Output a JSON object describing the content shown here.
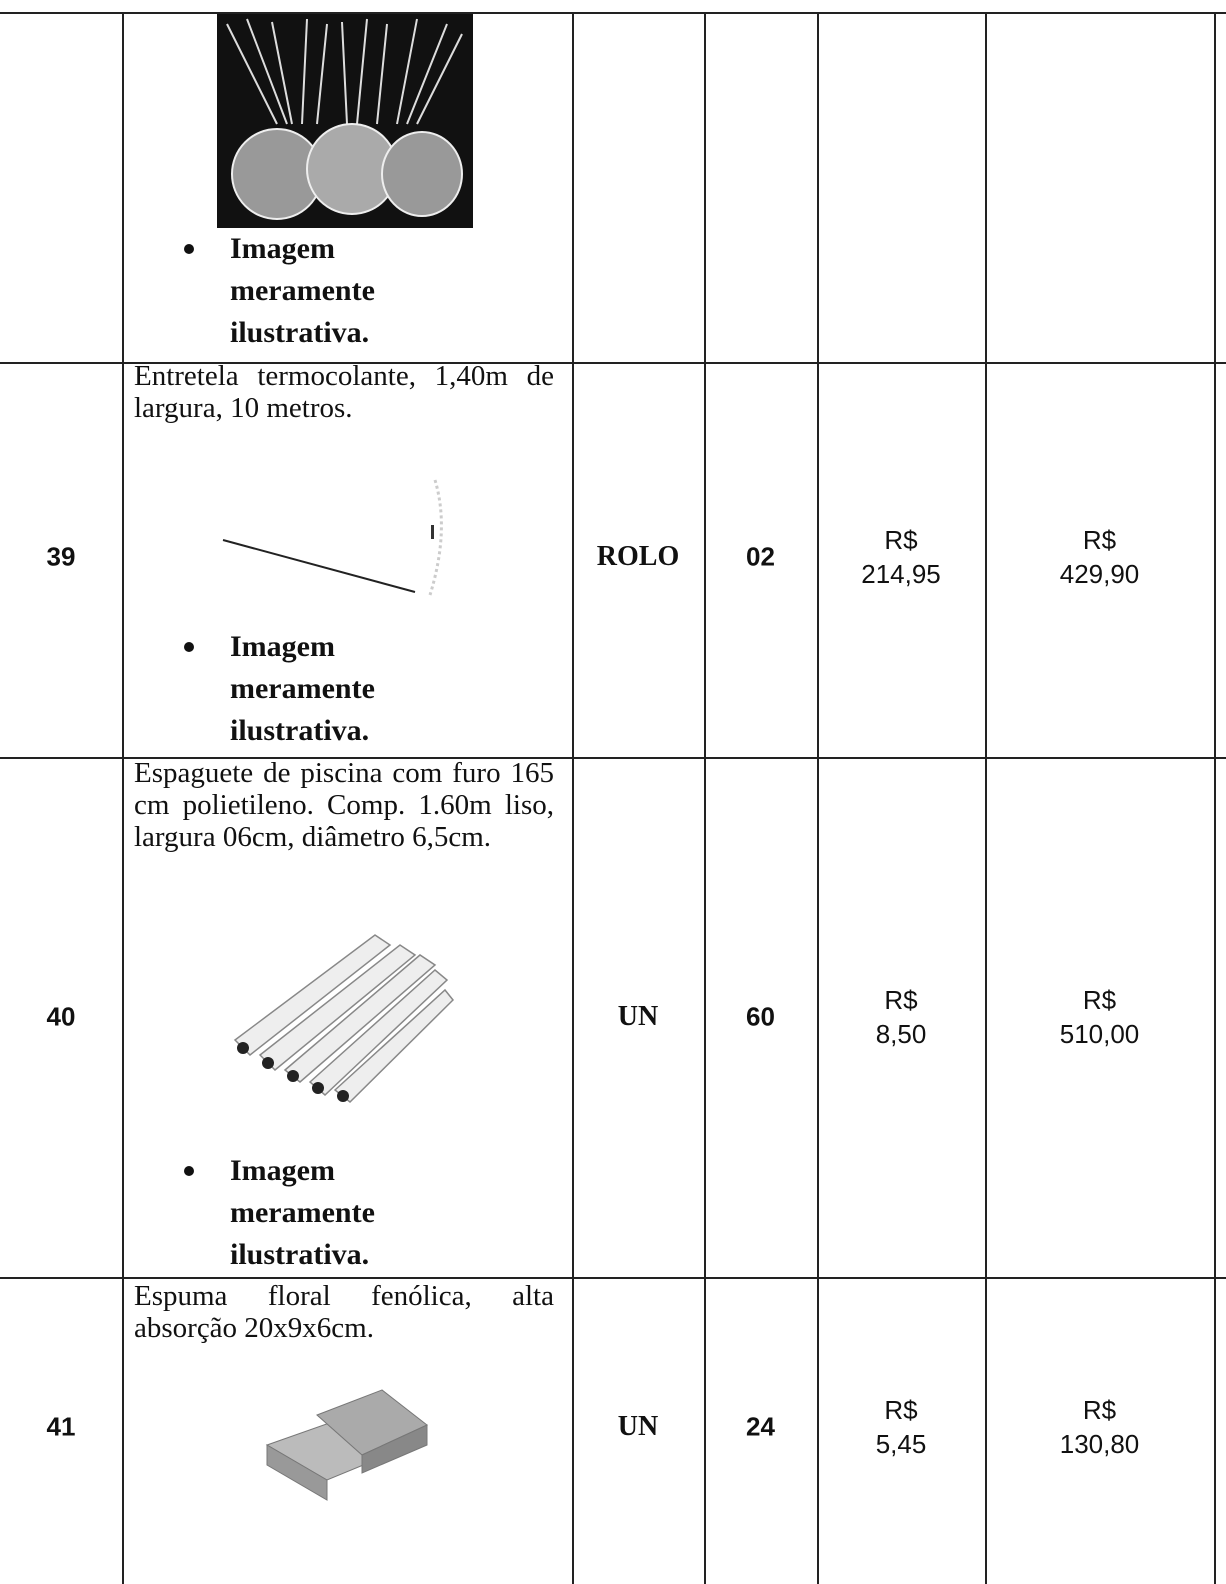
{
  "table": {
    "rows": [
      {
        "note": "Imagem meramente ilustrativa."
      },
      {
        "item": "39",
        "description": "Entretela termocolante, 1,40m de largura, 10 metros.",
        "unit": "ROLO",
        "quantity": "02",
        "unit_price": "R$ 214,95",
        "total": "R$ 429,90",
        "note": "Imagem meramente ilustrativa."
      },
      {
        "item": "40",
        "description": "Espaguete de piscina com furo 165 cm polietileno. Comp. 1.60m liso, largura 06cm, diâmetro 6,5cm.",
        "unit": "UN",
        "quantity": "60",
        "unit_price": "R$ 8,50",
        "total": "R$ 510,00",
        "note": "Imagem meramente ilustrativa."
      },
      {
        "item": "41",
        "description": "Espuma floral fenólica, alta absorção 20x9x6cm.",
        "unit": "UN",
        "quantity": "24",
        "unit_price": "R$ 5,45",
        "total": "R$ 130,80"
      }
    ]
  }
}
